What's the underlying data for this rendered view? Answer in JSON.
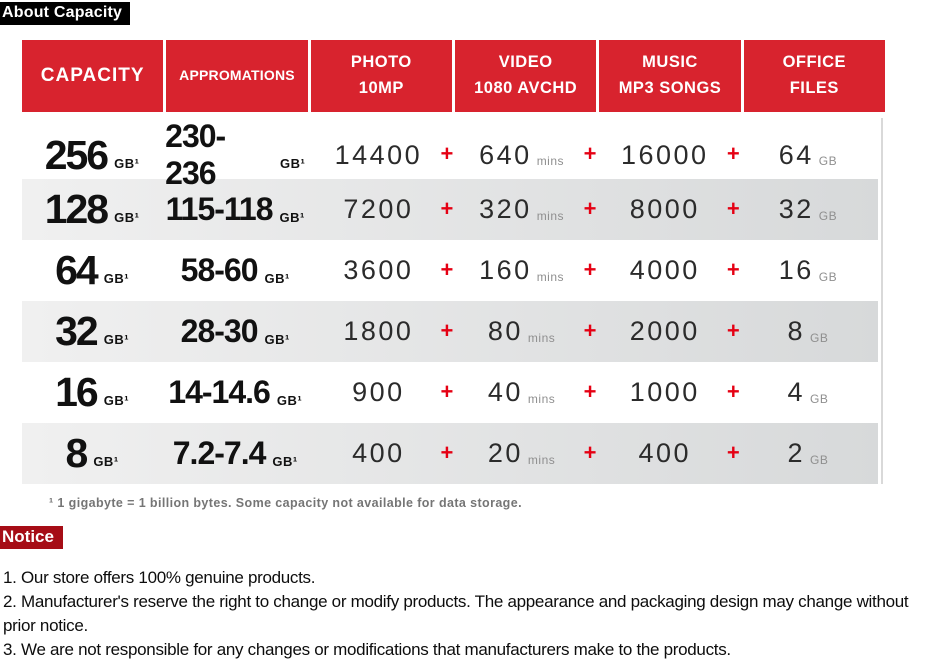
{
  "about": {
    "label": "About Capacity"
  },
  "colors": {
    "header-red": "#d8232e",
    "plus-red": "#e50013",
    "notice-red": "#a60d16",
    "row-gray-left": "#f0f0f0",
    "row-gray-right": "#d7d9da",
    "text-dark": "#111111",
    "num-gray": "#2b2b2b",
    "unit-gray": "#8f8f8f",
    "footnote-gray": "#757575"
  },
  "table": {
    "plus": "+",
    "headers": [
      {
        "line1": "CAPACITY",
        "line2": ""
      },
      {
        "line1": "APPROMATIONS",
        "line2": ""
      },
      {
        "line1": "PHOTO",
        "line2": "10MP"
      },
      {
        "line1": "VIDEO",
        "line2": "1080 AVCHD"
      },
      {
        "line1": "MUSIC",
        "line2": "MP3 SONGS"
      },
      {
        "line1": "OFFICE",
        "line2": "FILES"
      }
    ],
    "rows": [
      {
        "capacity": "256",
        "capacity_unit": "GB¹",
        "approx": "230-236",
        "approx_unit": "GB¹",
        "photo": "14400",
        "video": "640",
        "video_unit": "mins",
        "music": "16000",
        "office": "64",
        "office_unit": "GB"
      },
      {
        "capacity": "128",
        "capacity_unit": "GB¹",
        "approx": "115-118",
        "approx_unit": "GB¹",
        "photo": "7200",
        "video": "320",
        "video_unit": "mins",
        "music": "8000",
        "office": "32",
        "office_unit": "GB"
      },
      {
        "capacity": "64",
        "capacity_unit": "GB¹",
        "approx": "58-60",
        "approx_unit": "GB¹",
        "photo": "3600",
        "video": "160",
        "video_unit": "mins",
        "music": "4000",
        "office": "16",
        "office_unit": "GB"
      },
      {
        "capacity": "32",
        "capacity_unit": "GB¹",
        "approx": "28-30",
        "approx_unit": "GB¹",
        "photo": "1800",
        "video": "80",
        "video_unit": "mins",
        "music": "2000",
        "office": "8",
        "office_unit": "GB"
      },
      {
        "capacity": "16",
        "capacity_unit": "GB¹",
        "approx": "14-14.6",
        "approx_unit": "GB¹",
        "photo": "900",
        "video": "40",
        "video_unit": "mins",
        "music": "1000",
        "office": "4",
        "office_unit": "GB"
      },
      {
        "capacity": "8",
        "capacity_unit": "GB¹",
        "approx": "7.2-7.4",
        "approx_unit": "GB¹",
        "photo": "400",
        "video": "20",
        "video_unit": "mins",
        "music": "400",
        "office": "2",
        "office_unit": "GB"
      }
    ],
    "footnote": "¹ 1 gigabyte = 1 billion bytes. Some capacity not available for data storage."
  },
  "notice": {
    "label": "Notice",
    "items": [
      "1. Our store offers 100% genuine products.",
      "2. Manufacturer's reserve the right to change or modify products. The appearance and packaging design may change without prior notice.",
      "3. We are not responsible for any changes or modifications that manufacturers make to the products."
    ]
  }
}
